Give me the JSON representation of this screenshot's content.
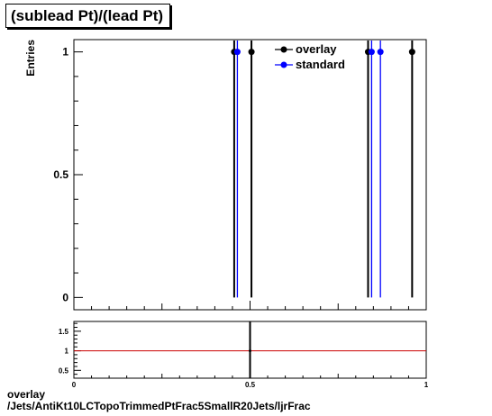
{
  "header": {
    "title": "(sublead Pt)/(lead Pt)"
  },
  "footer": {
    "line1": "overlay",
    "line2": "/Jets/AntiKt10LCTopoTrimmedPtFrac5SmallR20Jets/ljrFrac"
  },
  "colors": {
    "overlay": "#000000",
    "standard": "#0000ff",
    "ratio_line": "#cc0000"
  },
  "chart_data": [
    {
      "type": "scatter",
      "title": "(sublead Pt)/(lead Pt)",
      "xlabel": "",
      "ylabel": "Entries",
      "xlim": [
        0,
        1
      ],
      "ylim": [
        -0.05,
        1.05
      ],
      "yticks": [
        0,
        0.5,
        1
      ],
      "ytick_labels": [
        "0",
        "0.5",
        "1"
      ],
      "grid": false,
      "legend": "top-right",
      "series": [
        {
          "name": "overlay",
          "color": "#000000",
          "points": [
            {
              "x": 0.455,
              "y": 1
            },
            {
              "x": 0.504,
              "y": 1
            },
            {
              "x": 0.835,
              "y": 1
            },
            {
              "x": 0.96,
              "y": 1
            }
          ]
        },
        {
          "name": "standard",
          "color": "#0000ff",
          "points": [
            {
              "x": 0.464,
              "y": 1
            },
            {
              "x": 0.845,
              "y": 1
            },
            {
              "x": 0.87,
              "y": 1
            }
          ]
        }
      ]
    },
    {
      "type": "line",
      "title": "",
      "xlabel": "",
      "ylabel": "",
      "xlim": [
        0,
        1
      ],
      "ylim": [
        0.3,
        1.75
      ],
      "yticks": [
        0.5,
        1,
        1.5
      ],
      "ytick_labels": [
        "0.5",
        "1",
        "1.5"
      ],
      "xticks": [
        0,
        0.5,
        1
      ],
      "xtick_labels": [
        "0",
        "0.5",
        "1"
      ],
      "reference_line": 1,
      "points": [
        {
          "x": 0.5,
          "y": 1
        }
      ]
    }
  ]
}
